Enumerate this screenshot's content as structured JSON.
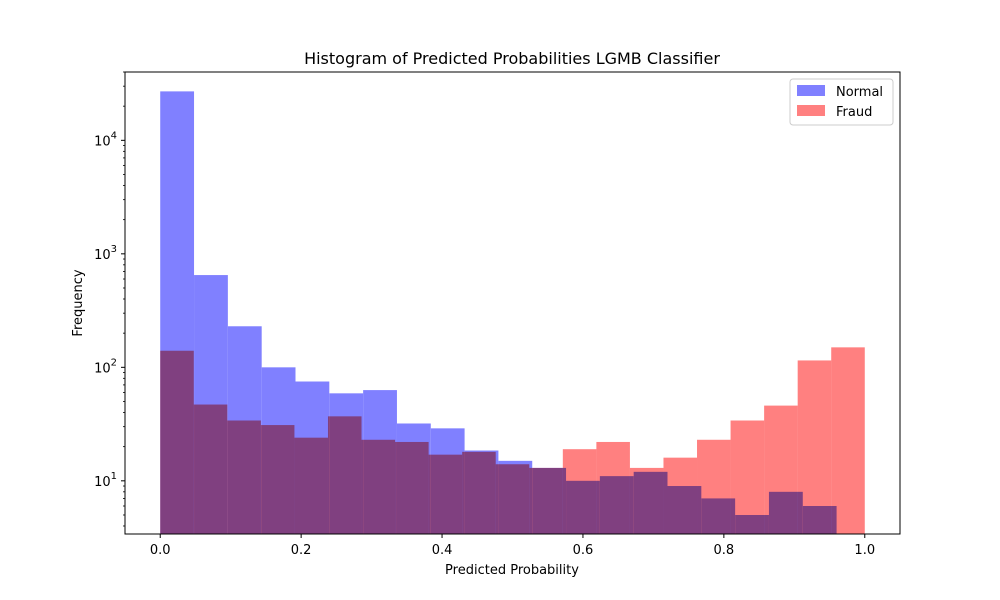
{
  "chart_data": {
    "type": "bar",
    "title": "Histogram of Predicted Probabilities LGMB Classifier",
    "xlabel": "Predicted Probability",
    "ylabel": "Frequency",
    "yscale": "log",
    "xlim": [
      -0.05,
      1.05
    ],
    "ylim": [
      3.4,
      40000
    ],
    "grid": false,
    "legend_position": "top-right",
    "x_ticks": [
      "0.0",
      "0.2",
      "0.4",
      "0.6",
      "0.8",
      "1.0"
    ],
    "y_ticks": [
      {
        "base": "10",
        "exp": "1"
      },
      {
        "base": "10",
        "exp": "2"
      },
      {
        "base": "10",
        "exp": "3"
      },
      {
        "base": "10",
        "exp": "4"
      }
    ],
    "series": [
      {
        "name": "Normal",
        "color": "#8080ff",
        "bin_range": [
          0.0,
          0.96
        ],
        "values": [
          27000,
          650,
          230,
          100,
          75,
          59,
          63,
          32,
          29,
          18.5,
          15,
          13,
          10,
          11,
          12,
          9,
          7,
          5,
          8,
          6
        ]
      },
      {
        "name": "Fraud",
        "color": "#ff8080",
        "bin_range": [
          0.0,
          1.0
        ],
        "values": [
          140,
          47,
          34,
          31,
          24,
          37,
          23,
          22,
          17,
          18,
          14,
          13,
          19,
          22,
          13,
          16,
          23,
          34,
          46,
          115,
          150
        ]
      }
    ],
    "overlap_color": "#c03c7a"
  }
}
